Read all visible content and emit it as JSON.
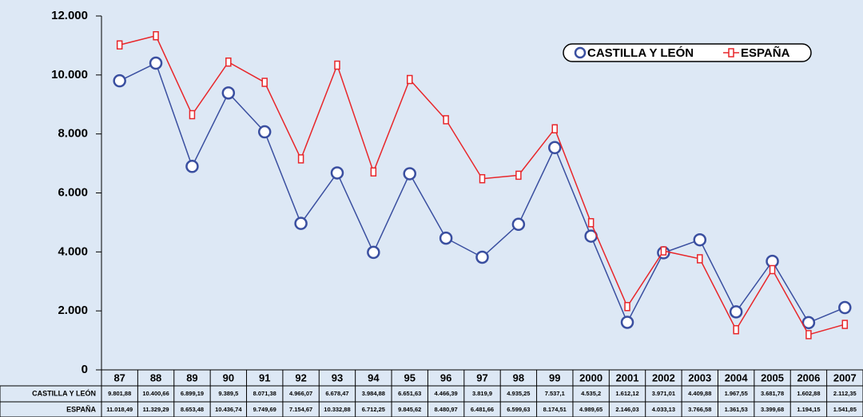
{
  "chart_data": {
    "type": "line",
    "categories": [
      "87",
      "88",
      "89",
      "90",
      "91",
      "92",
      "93",
      "94",
      "95",
      "96",
      "97",
      "98",
      "99",
      "2000",
      "2001",
      "2002",
      "2003",
      "2004",
      "2005",
      "2006",
      "2007"
    ],
    "series": [
      {
        "name": "CASTILLA Y LEÓN",
        "color": "#3a4fa0",
        "values": [
          9801.88,
          10400.66,
          6899.19,
          9389.5,
          8071.38,
          4966.07,
          6678.47,
          3984.88,
          6651.63,
          4466.39,
          3819.9,
          4935.25,
          7537.1,
          4535.2,
          1612.12,
          3971.01,
          4409.88,
          1967.55,
          3681.78,
          1602.88,
          2112.35
        ],
        "value_labels": [
          "9.801,88",
          "10.400,66",
          "6.899,19",
          "9.389,5",
          "8.071,38",
          "4.966,07",
          "6.678,47",
          "3.984,88",
          "6.651,63",
          "4.466,39",
          "3.819,9",
          "4.935,25",
          "7.537,1",
          "4.535,2",
          "1.612,12",
          "3.971,01",
          "4.409,88",
          "1.967,55",
          "3.681,78",
          "1.602,88",
          "2.112,35"
        ]
      },
      {
        "name": "ESPAÑA",
        "color": "#e8262a",
        "values": [
          11018.49,
          11329.29,
          8653.48,
          10436.74,
          9749.69,
          7154.67,
          10332.88,
          6712.25,
          9845.62,
          8480.97,
          6481.66,
          6599.63,
          8174.51,
          4989.65,
          2146.03,
          4033.13,
          3766.58,
          1361.53,
          3399.68,
          1194.15,
          1541.85
        ],
        "value_labels": [
          "11.018,49",
          "11.329,29",
          "8.653,48",
          "10.436,74",
          "9.749,69",
          "7.154,67",
          "10.332,88",
          "6.712,25",
          "9.845,62",
          "8.480,97",
          "6.481,66",
          "6.599,63",
          "8.174,51",
          "4.989,65",
          "2.146,03",
          "4.033,13",
          "3.766,58",
          "1.361,53",
          "3.399,68",
          "1.194,15",
          "1.541,85"
        ]
      }
    ],
    "ylim": [
      0,
      12000
    ],
    "yticks": [
      0,
      {
        "value": 2000,
        "label": "2.000"
      },
      {
        "value": 4000,
        "label": "4.000"
      },
      {
        "value": 6000,
        "label": "6.000"
      },
      {
        "value": 8000,
        "label": "8.000"
      },
      {
        "value": 10000,
        "label": "10.000"
      },
      {
        "value": 12000,
        "label": "12.000"
      }
    ],
    "legend": "upper right"
  }
}
